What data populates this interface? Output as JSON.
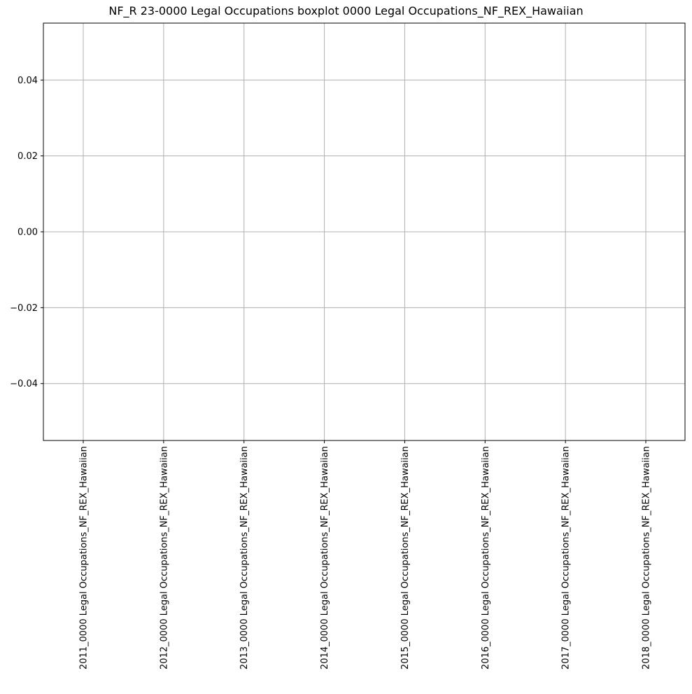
{
  "chart_data": {
    "type": "boxplot",
    "title": "NF_R 23-0000 Legal Occupations boxplot 0000 Legal Occupations_NF_REX_Hawaiian",
    "xlabel": "",
    "ylabel": "",
    "categories": [
      "2011_0000 Legal Occupations_NF_REX_Hawaiian",
      "2012_0000 Legal Occupations_NF_REX_Hawaiian",
      "2013_0000 Legal Occupations_NF_REX_Hawaiian",
      "2014_0000 Legal Occupations_NF_REX_Hawaiian",
      "2015_0000 Legal Occupations_NF_REX_Hawaiian",
      "2016_0000 Legal Occupations_NF_REX_Hawaiian",
      "2017_0000 Legal Occupations_NF_REX_Hawaiian",
      "2018_0000 Legal Occupations_NF_REX_Hawaiian"
    ],
    "values": [],
    "ylim": [
      -0.055,
      0.055
    ],
    "yticks": [
      -0.04,
      -0.02,
      0.0,
      0.02,
      0.04
    ],
    "ytick_labels": [
      "−0.04",
      "−0.02",
      "0.00",
      "0.02",
      "0.04"
    ],
    "grid": true,
    "legend": "none"
  },
  "colors": {
    "grid": "#b0b0b0",
    "axes": "#000000",
    "background": "#ffffff"
  }
}
